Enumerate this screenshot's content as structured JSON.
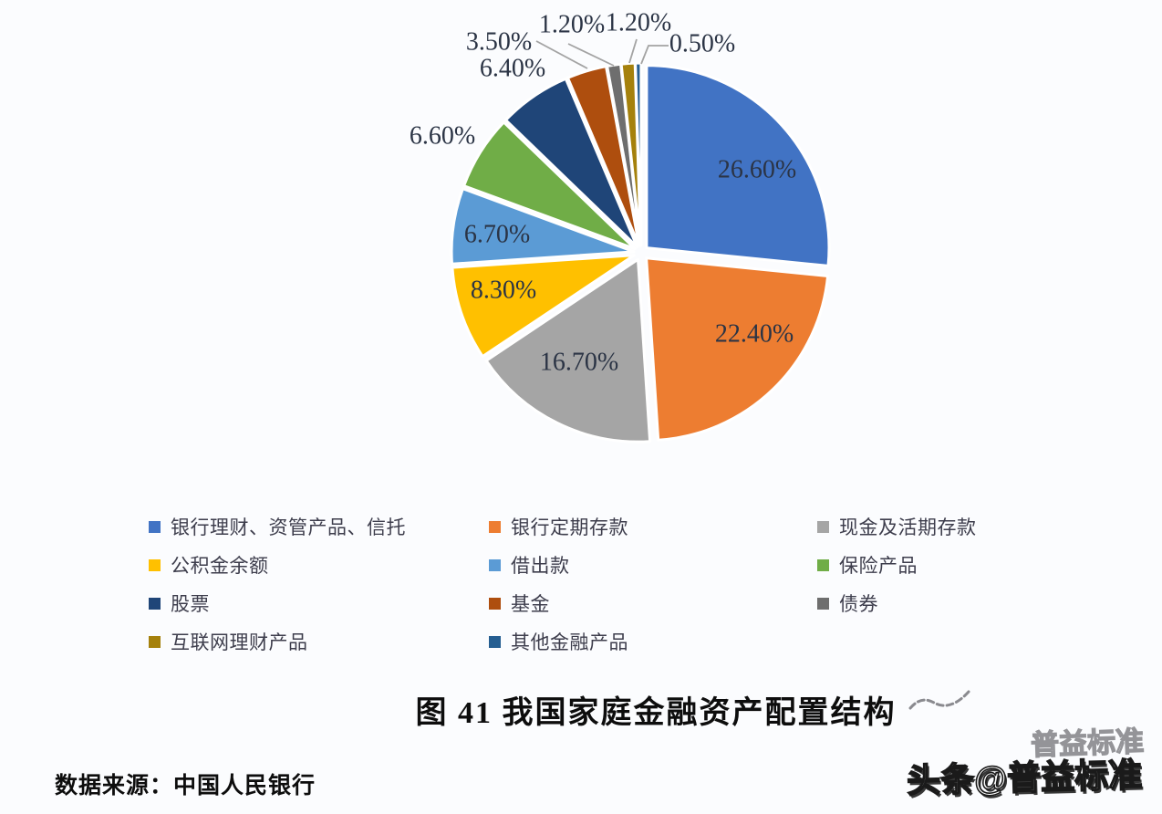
{
  "page": {
    "background": "#fbfcfe"
  },
  "chart_data": {
    "type": "pie",
    "title": "图 41  我国家庭金融资产配置结构",
    "source": "数据来源：中国人民银行",
    "legend_position": "bottom",
    "total_percent": 100.1,
    "slices": [
      {
        "label": "银行理财、资管产品、信托",
        "value": 26.6,
        "percent_label": "26.60%",
        "color": "#4173c4"
      },
      {
        "label": "银行定期存款",
        "value": 22.4,
        "percent_label": "22.40%",
        "color": "#ed7d31"
      },
      {
        "label": "现金及活期存款",
        "value": 16.7,
        "percent_label": "16.70%",
        "color": "#a5a5a5"
      },
      {
        "label": "公积金余额",
        "value": 8.3,
        "percent_label": "8.30%",
        "color": "#ffc000"
      },
      {
        "label": "借出款",
        "value": 6.7,
        "percent_label": "6.70%",
        "color": "#5b9bd5"
      },
      {
        "label": "保险产品",
        "value": 6.6,
        "percent_label": "6.60%",
        "color": "#70ad47"
      },
      {
        "label": "股票",
        "value": 6.4,
        "percent_label": "6.40%",
        "color": "#1f4578"
      },
      {
        "label": "基金",
        "value": 3.5,
        "percent_label": "3.50%",
        "color": "#ae4e0e"
      },
      {
        "label": "债券",
        "value": 1.2,
        "percent_label": "1.20%",
        "color": "#6e6e6e"
      },
      {
        "label": "互联网理财产品",
        "value": 1.2,
        "percent_label": "1.20%",
        "color": "#a5810c"
      },
      {
        "label": "其他金融产品",
        "value": 0.5,
        "percent_label": "0.50%",
        "color": "#255e91"
      }
    ]
  },
  "watermark": {
    "main": "头条@普益标准",
    "echo": "普益标准"
  }
}
